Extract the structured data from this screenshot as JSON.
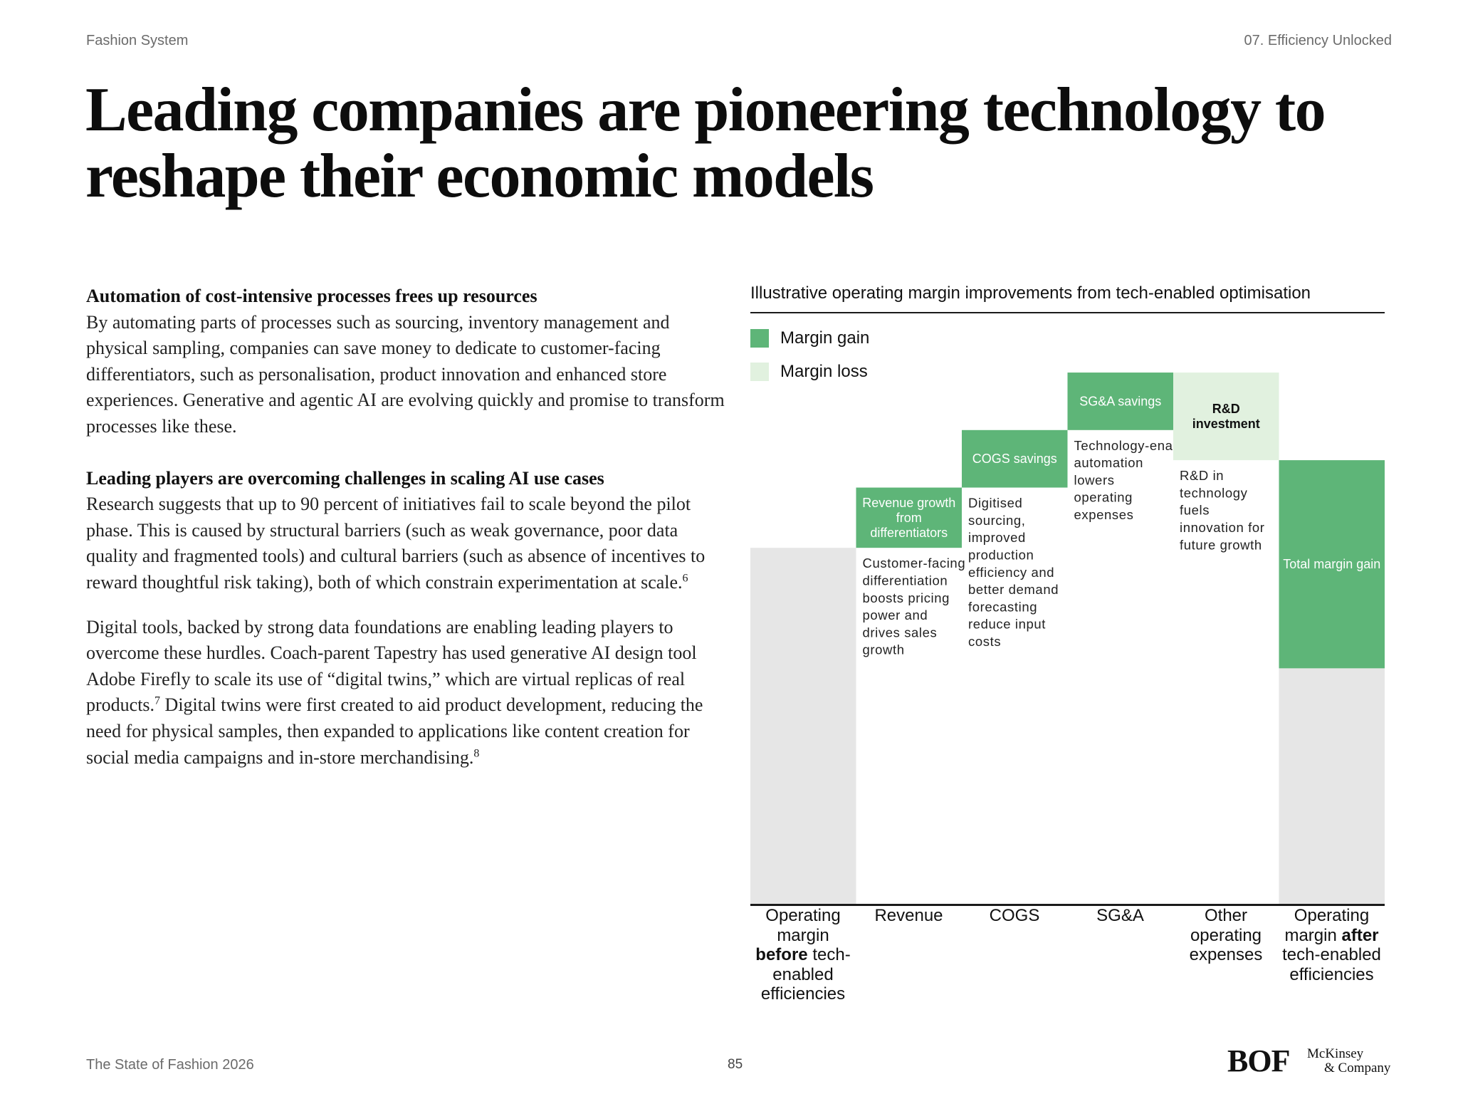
{
  "header": {
    "section": "Fashion System",
    "chapter": "07. Efficiency Unlocked"
  },
  "title": "Leading companies are pioneering technology to reshape their economic models",
  "body": {
    "p1_heading": "Automation of cost-intensive processes frees up resources",
    "p1_text": "By automating parts of processes such as sourcing, inventory management and physical sampling, companies can save money to dedicate to customer-facing differentiators, such as personalisation, product innovation and enhanced store experiences. Generative and agentic AI are evolving quickly and promise to transform processes like these.",
    "p2_heading": "Leading players are overcoming challenges in scaling AI use cases",
    "p2_text": "Research suggests that up to 90 percent of initiatives fail to scale beyond the pilot phase. This is caused by structural barriers (such as weak governance, poor data quality and fragmented tools) and cultural barriers (such as absence of incentives to reward thoughtful risk taking), both of which constrain experimentation at scale.",
    "p2_sup": "6",
    "p3_text_a": "Digital tools, backed by strong data foundations are enabling leading players to overcome these hurdles. Coach-parent Tapestry has used generative AI design tool Adobe Firefly to scale its use of “digital twins,” which are virtual replicas of real products.",
    "p3_sup_a": "7",
    "p3_text_b": " Digital twins were first created to aid product development, reducing the need for physical samples, then expanded to applications like content creation for social media campaigns and in-store merchandising.",
    "p3_sup_b": "8"
  },
  "chart": {
    "title": "Illustrative operating margin improvements from tech-enabled optimisation",
    "legend": [
      {
        "label": "Margin gain",
        "color": "#5eb578"
      },
      {
        "label": "Margin loss",
        "color": "#e1f1df"
      }
    ],
    "x_labels": {
      "before": {
        "pre": "Operating margin ",
        "bold": "before",
        "post": " tech-enabled efficiencies"
      },
      "revenue": "Revenue",
      "cogs": "COGS",
      "sga": "SG&A",
      "other": "Other operating expenses",
      "after": {
        "pre": "Operating margin ",
        "bold": "after",
        "post": " tech-enabled efficiencies"
      }
    }
  },
  "chart_data": {
    "type": "waterfall",
    "title": "Illustrative operating margin improvements from tech-enabled optimisation",
    "categories": [
      "Operating margin before tech-enabled efficiencies",
      "Revenue",
      "COGS",
      "SG&A",
      "Other operating expenses",
      "Operating margin after tech-enabled efficiencies"
    ],
    "baseline_color": "#e6e6e6",
    "gain_color": "#5eb578",
    "loss_color": "#e1f1df",
    "ylim": [
      0,
      100
    ],
    "bars": [
      {
        "category": "Operating margin before tech-enabled efficiencies",
        "kind": "base",
        "from": 0,
        "to": 65,
        "label": "",
        "note": ""
      },
      {
        "category": "Revenue",
        "kind": "gain",
        "from": 65,
        "to": 76,
        "label": "Revenue growth from differentiators",
        "note": "Customer-facing differentiation boosts pricing power and drives sales growth"
      },
      {
        "category": "COGS",
        "kind": "gain",
        "from": 76,
        "to": 86.5,
        "label": "COGS savings",
        "note": "Digitised sourcing, improved production efficiency and better demand forecasting reduce input costs"
      },
      {
        "category": "SG&A",
        "kind": "gain",
        "from": 86.5,
        "to": 97,
        "label": "SG&A savings",
        "note": "Technology-enabled automation lowers operating expenses"
      },
      {
        "category": "Other operating expenses",
        "kind": "loss",
        "from": 97,
        "to": 81,
        "label": "R&D investment",
        "note": "R&D in technology fuels innovation for future growth"
      },
      {
        "category": "Operating margin after tech-enabled efficiencies",
        "kind": "total",
        "from": 0,
        "to": 81,
        "base_to": 43,
        "label": "Total margin gain",
        "note": ""
      }
    ]
  },
  "footer": {
    "publication": "The State of Fashion 2026",
    "page": "85"
  },
  "logos": {
    "bof": "BOF",
    "mckinsey_line1": "McKinsey",
    "mckinsey_line2": "& Company"
  }
}
